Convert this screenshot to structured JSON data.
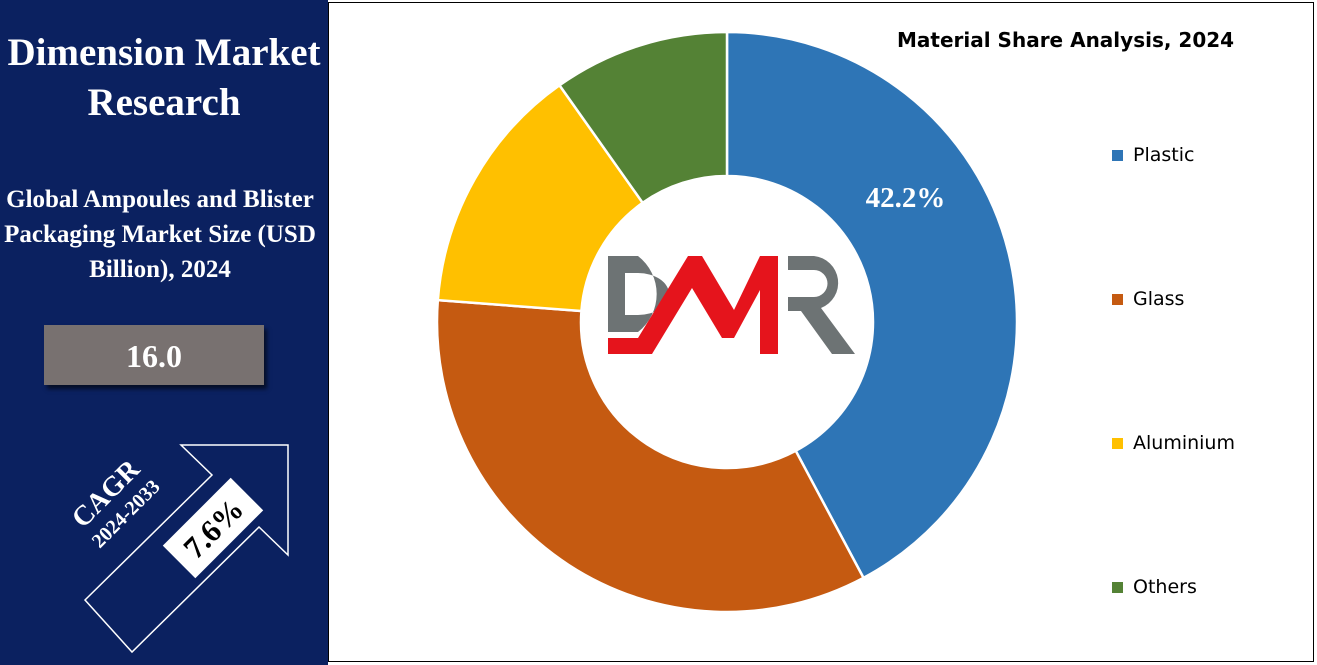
{
  "brand": {
    "name": "Dimension Market Research"
  },
  "market": {
    "title": "Global Ampoules and Blister Packaging Market Size (USD Billion), 2024",
    "value": "16.0"
  },
  "cagr": {
    "label": "CAGR",
    "period": "2024-2033",
    "value": "7.6%"
  },
  "logo": {
    "text": "DMR",
    "colors": {
      "D": "#6d7374",
      "M": "#e5141c",
      "R": "#6d7374"
    }
  },
  "chart_data": {
    "type": "pie",
    "variant": "donut",
    "title": "Material Share Analysis, 2024",
    "categories": [
      "Plastic",
      "Glass",
      "Aluminium",
      "Others"
    ],
    "values": [
      42.2,
      34.0,
      14.0,
      9.8
    ],
    "colors": [
      "#2e75b6",
      "#c55a11",
      "#ffc000",
      "#548235"
    ],
    "data_labels": [
      "42.2%",
      "",
      "",
      ""
    ],
    "start_angle_deg": 0,
    "direction": "clockwise",
    "legend": "right"
  }
}
